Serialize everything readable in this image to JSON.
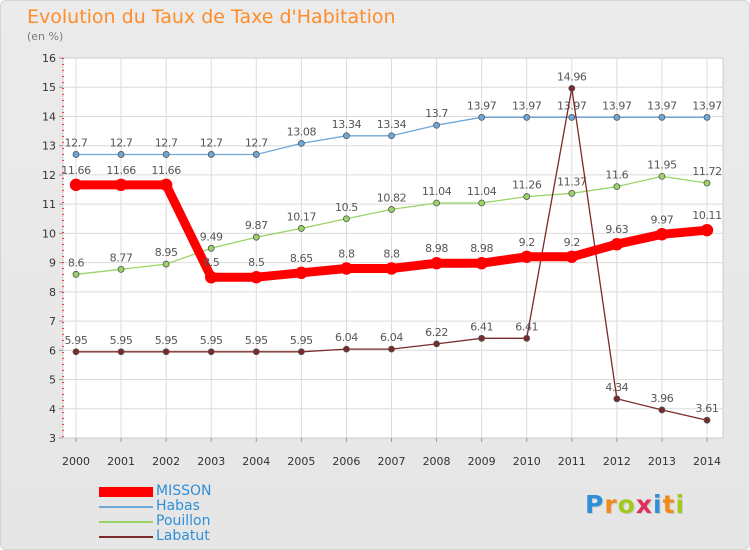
{
  "chart_data": {
    "type": "line",
    "title": "Evolution du Taux de Taxe d'Habitation",
    "subtitle": "(en %)",
    "xlabel": "",
    "ylabel": "",
    "ylim": [
      3,
      16
    ],
    "yticks": [
      "3",
      "4",
      "5",
      "6",
      "7",
      "8",
      "9",
      "10",
      "11",
      "12",
      "13",
      "14",
      "15",
      "16"
    ],
    "categories": [
      "2000",
      "2001",
      "2002",
      "2003",
      "2004",
      "2005",
      "2006",
      "2007",
      "2008",
      "2009",
      "2010",
      "2011",
      "2012",
      "2013",
      "2014"
    ],
    "grid": true,
    "legend_position": "bottom-left",
    "series": [
      {
        "name": "Habas",
        "color": "#6fa8d8",
        "values": [
          12.7,
          12.7,
          12.7,
          12.7,
          12.7,
          13.08,
          13.34,
          13.34,
          13.7,
          13.97,
          13.97,
          13.97,
          13.97,
          13.97,
          13.97
        ],
        "labels": [
          "12.7",
          "12.7",
          "12.7",
          "12.7",
          "12.7",
          "13.08",
          "13.34",
          "13.34",
          "13.7",
          "13.97",
          "13.97",
          "13.97",
          "13.97",
          "13.97",
          "13.97"
        ]
      },
      {
        "name": "Pouillon",
        "color": "#9ad466",
        "values": [
          8.6,
          8.77,
          8.95,
          9.49,
          9.87,
          10.17,
          10.5,
          10.82,
          11.04,
          11.04,
          11.26,
          11.37,
          11.6,
          11.95,
          11.72
        ],
        "labels": [
          "8.6",
          "8.77",
          "8.95",
          "9.49",
          "9.87",
          "10.17",
          "10.5",
          "10.82",
          "11.04",
          "11.04",
          "11.26",
          "11.37",
          "11.6",
          "11.95",
          "11.72"
        ]
      },
      {
        "name": "Labatut",
        "color": "#7a2a2a",
        "values": [
          5.95,
          5.95,
          5.95,
          5.95,
          5.95,
          5.95,
          6.04,
          6.04,
          6.22,
          6.41,
          6.41,
          14.96,
          4.34,
          3.96,
          3.61
        ],
        "labels": [
          "5.95",
          "5.95",
          "5.95",
          "5.95",
          "5.95",
          "5.95",
          "6.04",
          "6.04",
          "6.22",
          "6.41",
          "6.41",
          "14.96",
          "4.34",
          "3.96",
          "3.61"
        ]
      },
      {
        "name": "MISSON",
        "color": "#ff0000",
        "values": [
          11.66,
          11.66,
          11.66,
          8.5,
          8.5,
          8.65,
          8.8,
          8.8,
          8.98,
          8.98,
          9.2,
          9.2,
          9.63,
          9.97,
          10.11
        ],
        "labels": [
          "11.66",
          "11.66",
          "11.66",
          "8.5",
          "8.5",
          "8.65",
          "8.8",
          "8.8",
          "8.98",
          "8.98",
          "9.2",
          "9.2",
          "9.63",
          "9.97",
          "10.11"
        ]
      }
    ]
  },
  "legend": [
    {
      "label": "MISSON",
      "color": "#ff0000"
    },
    {
      "label": "Habas",
      "color": "#6fa8d8"
    },
    {
      "label": "Pouillon",
      "color": "#9ad466"
    },
    {
      "label": "Labatut",
      "color": "#7a2a2a"
    }
  ],
  "logo": {
    "text": "Proxiti",
    "letters": [
      "P",
      "r",
      "o",
      "x",
      "i",
      "t",
      "i"
    ],
    "colors": [
      "#2f8fd6",
      "#f08a1c",
      "#a4c81e",
      "#e0305a",
      "#2f8fd6",
      "#f08a1c",
      "#a4c81e"
    ]
  }
}
